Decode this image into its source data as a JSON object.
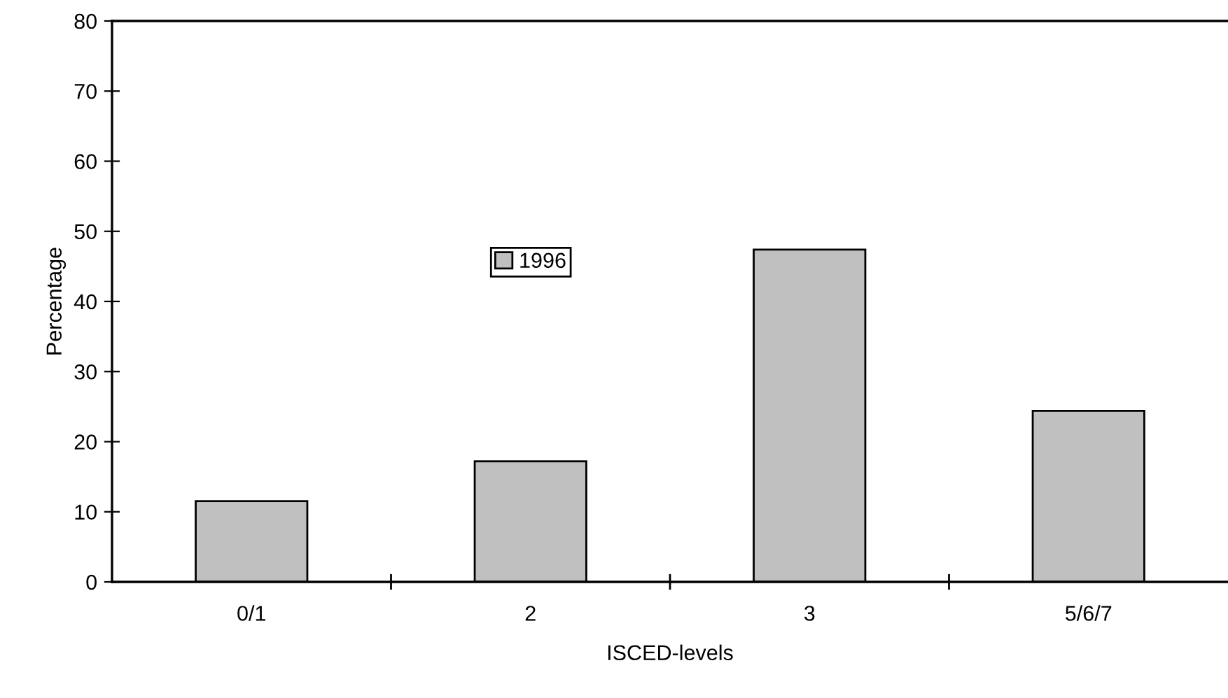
{
  "chart_data": {
    "type": "bar",
    "xlabel": "ISCED-levels",
    "ylabel": "Percentage",
    "categories": [
      "0/1",
      "2",
      "3",
      "5/6/7"
    ],
    "series": [
      {
        "name": "1996",
        "color": "#c0c0c0",
        "values": [
          11.5,
          17.2,
          47.4,
          24.4
        ]
      }
    ],
    "ylim": [
      0,
      80
    ],
    "yticks": [
      0,
      10,
      20,
      30,
      40,
      50,
      60,
      70,
      80
    ],
    "grid": false,
    "legend": "center"
  }
}
